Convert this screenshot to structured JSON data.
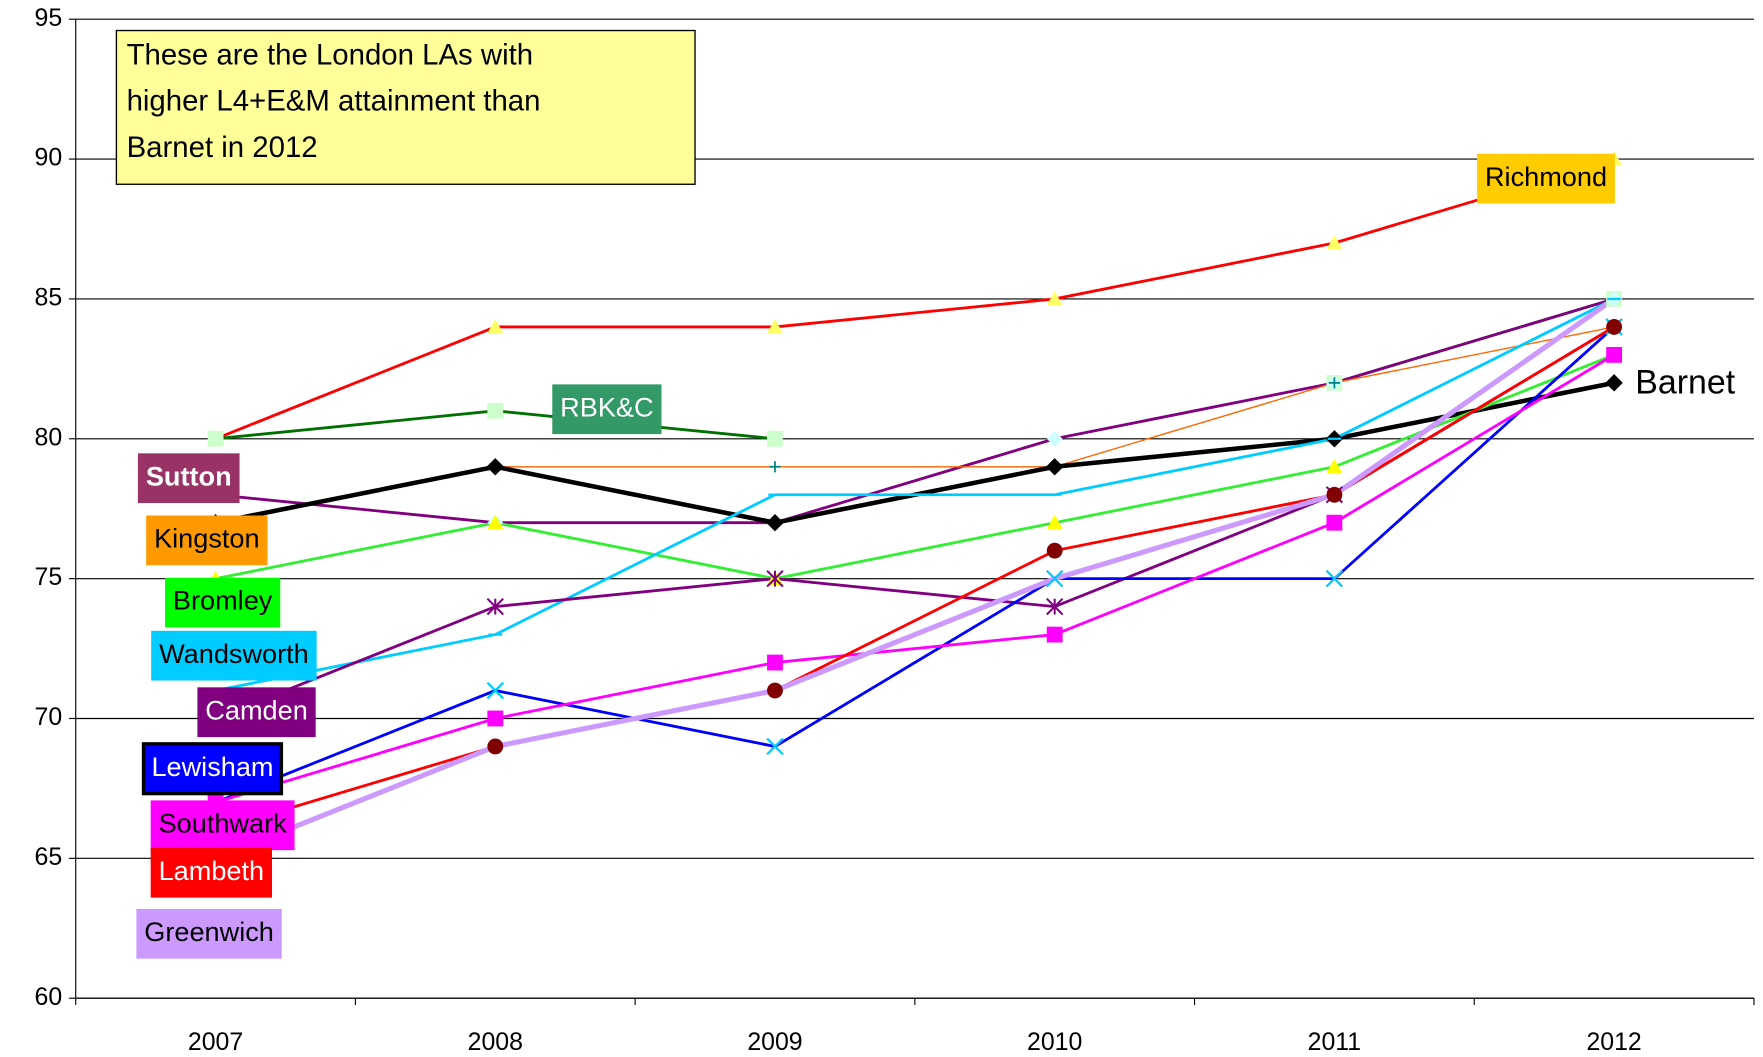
{
  "chart_data": {
    "type": "line",
    "annotation": [
      "These are the London LAs with",
      "higher L4+E&M attainment than",
      "Barnet in 2012"
    ],
    "categories": [
      "2007",
      "2008",
      "2009",
      "2010",
      "2011",
      "2012"
    ],
    "ylim": [
      60,
      95
    ],
    "yticks": [
      60,
      65,
      70,
      75,
      80,
      85,
      90,
      95
    ],
    "grid": true,
    "series": [
      {
        "name": "Richmond",
        "color": "#ff0000",
        "marker_color": "#ffff66",
        "marker": "triangle",
        "label_color": "#ffcc00",
        "values": [
          80,
          84,
          84,
          85,
          87,
          90
        ]
      },
      {
        "name": "RBK&C",
        "color": "#007000",
        "marker_color": "#ccffcc",
        "marker": "square",
        "label_color": "#339966",
        "values": [
          80,
          81,
          80,
          null,
          82,
          85
        ]
      },
      {
        "name": "Sutton",
        "color": "#800080",
        "marker_color": "#ccffff",
        "marker": "diamond",
        "label_color": "#993366",
        "values": [
          78,
          77,
          77,
          80,
          82,
          85
        ]
      },
      {
        "name": "Kingston",
        "color": "#ff6600",
        "marker_color": "#008080",
        "marker": "plus",
        "label_color": "#ff9900",
        "values": [
          77,
          79,
          79,
          79,
          82,
          84
        ]
      },
      {
        "name": "Barnet",
        "color": "#000000",
        "marker_color": "#000000",
        "marker": "diamond",
        "values": [
          77,
          79,
          77,
          79,
          80,
          82
        ]
      },
      {
        "name": "Bromley",
        "color": "#33ee33",
        "marker_color": "#ffff00",
        "marker": "triangle",
        "label_color": "#00ff00",
        "values": [
          75,
          77,
          75,
          77,
          79,
          83
        ]
      },
      {
        "name": "Wandsworth",
        "color": "#00ccff",
        "marker_color": "#00ccff",
        "marker": "dash",
        "label_color": "#00ccff",
        "values": [
          71,
          73,
          78,
          78,
          80,
          85
        ]
      },
      {
        "name": "Camden",
        "color": "#800080",
        "marker_color": "#800080",
        "marker": "star",
        "label_color": "#800080",
        "values": [
          70,
          74,
          75,
          74,
          78,
          84
        ]
      },
      {
        "name": "Lewisham",
        "color": "#0000ff",
        "marker_color": "#00ccff",
        "marker": "x",
        "label_color": "#0000ff",
        "values": [
          67,
          71,
          69,
          75,
          75,
          84
        ]
      },
      {
        "name": "Southwark",
        "color": "#ff00ff",
        "marker_color": "#ff00ff",
        "marker": "square",
        "label_color": "#ff00ff",
        "values": [
          67,
          70,
          72,
          73,
          77,
          83
        ]
      },
      {
        "name": "Lambeth",
        "color": "#ff0000",
        "marker_color": "#800000",
        "marker": "circle",
        "label_color": "#ff0000",
        "values": [
          66,
          69,
          71,
          76,
          78,
          84
        ]
      },
      {
        "name": "Greenwich",
        "color": "#cc99ff",
        "marker_color": "#cc99ff",
        "marker": "none",
        "label_color": "#cc99ff",
        "values": [
          65,
          69,
          71,
          75,
          78,
          85
        ]
      }
    ]
  }
}
